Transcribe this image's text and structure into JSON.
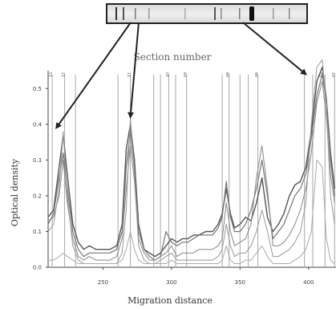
{
  "chart_data": {
    "type": "line",
    "title": "Section number",
    "xlabel": "Migration distance",
    "ylabel": "Optical density",
    "xlim": [
      210,
      420
    ],
    "ylim": [
      0,
      0.55
    ],
    "x_ticks": [
      250,
      300,
      350,
      400
    ],
    "y_ticks": [
      0.0,
      0.1,
      0.2,
      0.3,
      0.4,
      0.5
    ],
    "x_tick_labels": [
      "250",
      "300",
      "350",
      "400"
    ],
    "y_tick_labels": [
      "0.0",
      "0.1",
      "0.2",
      "0.3",
      "0.4",
      "0.5"
    ],
    "section_lines": [
      213,
      222,
      230,
      261,
      270,
      287,
      292,
      298,
      303,
      311,
      337,
      342,
      350,
      356,
      363,
      397,
      403,
      412,
      419
    ],
    "section_labels": [
      {
        "x": 213,
        "label": "13"
      },
      {
        "x": 222,
        "label": "12"
      },
      {
        "x": 270,
        "label": "11"
      },
      {
        "x": 298,
        "label": "10"
      },
      {
        "x": 311,
        "label": "09"
      },
      {
        "x": 342,
        "label": "08"
      },
      {
        "x": 363,
        "label": "06"
      },
      {
        "x": 410,
        "label": "03"
      },
      {
        "x": 419,
        "label": "02"
      }
    ],
    "arrows": [
      {
        "from_band": 0.12,
        "to_x": 216,
        "to_y": 0.39
      },
      {
        "from_band": 0.16,
        "to_x": 270,
        "to_y": 0.42
      },
      {
        "from_band": 0.68,
        "to_x": 398,
        "to_y": 0.54
      }
    ],
    "series": [
      {
        "color": "#555555",
        "width": 1.4,
        "x": [
          210,
          214,
          218,
          221,
          224,
          228,
          232,
          236,
          240,
          245,
          250,
          255,
          260,
          264,
          267,
          270,
          273,
          276,
          280,
          284,
          288,
          292,
          296,
          300,
          304,
          308,
          312,
          316,
          320,
          325,
          330,
          334,
          337,
          340,
          343,
          346,
          350,
          354,
          358,
          362,
          366,
          370,
          374,
          378,
          382,
          386,
          390,
          394,
          398,
          402,
          406,
          410,
          413,
          416,
          419
        ],
        "y": [
          0.14,
          0.16,
          0.28,
          0.37,
          0.26,
          0.12,
          0.07,
          0.05,
          0.06,
          0.05,
          0.05,
          0.05,
          0.06,
          0.12,
          0.33,
          0.4,
          0.3,
          0.12,
          0.05,
          0.04,
          0.03,
          0.04,
          0.06,
          0.08,
          0.07,
          0.08,
          0.08,
          0.09,
          0.09,
          0.1,
          0.1,
          0.12,
          0.15,
          0.22,
          0.15,
          0.11,
          0.12,
          0.14,
          0.13,
          0.18,
          0.25,
          0.14,
          0.1,
          0.12,
          0.15,
          0.2,
          0.23,
          0.24,
          0.28,
          0.38,
          0.52,
          0.56,
          0.47,
          0.32,
          0.22
        ]
      },
      {
        "color": "#777777",
        "width": 1.2,
        "x": [
          210,
          214,
          218,
          221,
          224,
          228,
          232,
          236,
          240,
          245,
          250,
          255,
          260,
          264,
          267,
          270,
          273,
          276,
          280,
          284,
          288,
          292,
          296,
          300,
          304,
          308,
          312,
          316,
          320,
          325,
          330,
          334,
          337,
          340,
          343,
          346,
          350,
          354,
          358,
          362,
          366,
          370,
          374,
          378,
          382,
          386,
          390,
          394,
          398,
          402,
          406,
          410,
          413,
          416,
          419
        ],
        "y": [
          0.12,
          0.15,
          0.25,
          0.32,
          0.22,
          0.1,
          0.05,
          0.03,
          0.04,
          0.04,
          0.04,
          0.04,
          0.05,
          0.1,
          0.28,
          0.38,
          0.27,
          0.1,
          0.05,
          0.03,
          0.02,
          0.03,
          0.1,
          0.07,
          0.06,
          0.07,
          0.07,
          0.08,
          0.09,
          0.09,
          0.09,
          0.11,
          0.14,
          0.24,
          0.14,
          0.1,
          0.1,
          0.12,
          0.16,
          0.22,
          0.3,
          0.2,
          0.08,
          0.1,
          0.12,
          0.16,
          0.2,
          0.22,
          0.26,
          0.36,
          0.48,
          0.54,
          0.46,
          0.3,
          0.2
        ]
      },
      {
        "color": "#888888",
        "width": 1.0,
        "x": [
          210,
          214,
          218,
          221,
          224,
          228,
          232,
          236,
          240,
          245,
          250,
          255,
          260,
          264,
          267,
          270,
          273,
          276,
          280,
          284,
          288,
          292,
          296,
          300,
          304,
          308,
          312,
          316,
          320,
          325,
          330,
          334,
          337,
          340,
          343,
          346,
          350,
          354,
          358,
          362,
          366,
          370,
          374,
          378,
          382,
          386,
          390,
          394,
          398,
          402,
          406,
          410,
          413,
          416,
          419
        ],
        "y": [
          0.13,
          0.14,
          0.2,
          0.3,
          0.18,
          0.08,
          0.03,
          0.02,
          0.03,
          0.02,
          0.02,
          0.02,
          0.03,
          0.08,
          0.22,
          0.34,
          0.24,
          0.08,
          0.04,
          0.02,
          0.02,
          0.03,
          0.04,
          0.06,
          0.03,
          0.04,
          0.04,
          0.04,
          0.05,
          0.05,
          0.05,
          0.06,
          0.08,
          0.18,
          0.1,
          0.06,
          0.07,
          0.08,
          0.12,
          0.25,
          0.34,
          0.22,
          0.06,
          0.06,
          0.07,
          0.09,
          0.12,
          0.16,
          0.22,
          0.32,
          0.46,
          0.52,
          0.42,
          0.26,
          0.18
        ]
      },
      {
        "color": "#999999",
        "width": 1.0,
        "x": [
          210,
          214,
          218,
          221,
          224,
          228,
          232,
          236,
          240,
          245,
          250,
          255,
          260,
          264,
          267,
          270,
          273,
          276,
          280,
          284,
          288,
          292,
          296,
          300,
          304,
          308,
          312,
          316,
          320,
          325,
          330,
          334,
          337,
          340,
          343,
          346,
          350,
          354,
          358,
          362,
          366,
          370,
          374,
          378,
          382,
          386,
          390,
          394,
          398,
          402,
          406,
          410,
          413,
          416,
          419
        ],
        "y": [
          0.1,
          0.12,
          0.22,
          0.38,
          0.2,
          0.06,
          0.02,
          0.01,
          0.01,
          0.01,
          0.01,
          0.01,
          0.01,
          0.04,
          0.16,
          0.42,
          0.26,
          0.06,
          0.02,
          0.01,
          0.01,
          0.02,
          0.03,
          0.04,
          0.02,
          0.02,
          0.02,
          0.02,
          0.02,
          0.02,
          0.02,
          0.03,
          0.05,
          0.12,
          0.06,
          0.03,
          0.04,
          0.04,
          0.06,
          0.1,
          0.16,
          0.1,
          0.03,
          0.03,
          0.04,
          0.05,
          0.07,
          0.1,
          0.18,
          0.4,
          0.56,
          0.58,
          0.45,
          0.2,
          0.12
        ]
      },
      {
        "color": "#aaaaaa",
        "width": 1.0,
        "x": [
          210,
          214,
          218,
          221,
          224,
          228,
          232,
          236,
          240,
          245,
          250,
          255,
          260,
          264,
          267,
          270,
          273,
          276,
          280,
          284,
          288,
          292,
          296,
          300,
          304,
          308,
          312,
          316,
          320,
          325,
          330,
          334,
          337,
          340,
          343,
          346,
          350,
          354,
          358,
          362,
          366,
          370,
          374,
          378,
          382,
          386,
          390,
          394,
          398,
          402,
          406,
          410,
          413,
          416,
          419
        ],
        "y": [
          0.02,
          0.02,
          0.03,
          0.04,
          0.03,
          0.02,
          0.01,
          0.01,
          0.01,
          0.01,
          0.01,
          0.01,
          0.01,
          0.02,
          0.05,
          0.1,
          0.05,
          0.02,
          0.01,
          0.01,
          0.01,
          0.01,
          0.01,
          0.02,
          0.01,
          0.01,
          0.01,
          0.01,
          0.01,
          0.01,
          0.01,
          0.01,
          0.02,
          0.06,
          0.02,
          0.01,
          0.01,
          0.02,
          0.02,
          0.04,
          0.06,
          0.03,
          0.01,
          0.01,
          0.01,
          0.01,
          0.02,
          0.03,
          0.05,
          0.1,
          0.3,
          0.28,
          0.08,
          0.02,
          0.01
        ]
      }
    ]
  }
}
